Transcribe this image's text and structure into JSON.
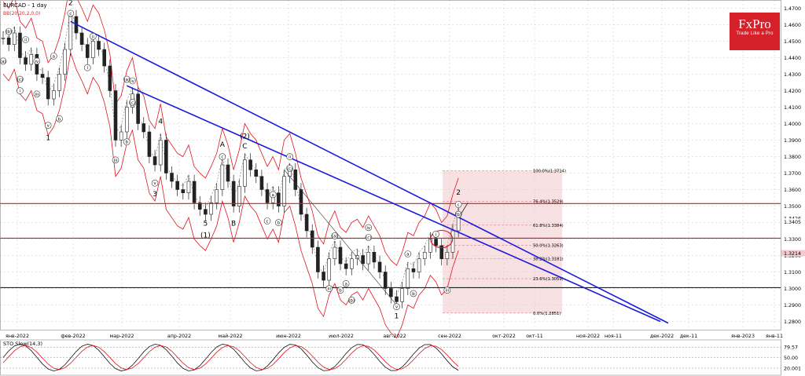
{
  "header": {
    "symbol_label": "EURCAD - 1 day",
    "bb_label": "BB(20,20,2,0,0)"
  },
  "logo": {
    "brand": "FxPro",
    "tagline": "Trade Like a Pro"
  },
  "sto": {
    "label": "STO Slow(14,3)",
    "ticks": [
      "79.57",
      "50.00",
      "20.001"
    ]
  },
  "colors": {
    "trend": "#1a1adc",
    "level": "#e0141e",
    "band": "#e0141e",
    "up": "#2a2a2a",
    "down": "#2a2a2a",
    "fibzone": "#f3c9cc"
  },
  "chart_data": {
    "type": "candlestick",
    "title": "EURCAD - 1 day",
    "x_ticks": [
      "янв-2022",
      "фев-2022",
      "мар-2022",
      "апр-2022",
      "май-2022",
      "июн-2022",
      "июл-2022",
      "авг-2022",
      "сен-2022",
      "окт-2022",
      "окт-11",
      "ноя-2022",
      "ноя-11",
      "дек-2022",
      "дек-11",
      "янв-2023",
      "янв-11"
    ],
    "y_ticks": [
      "1.4700",
      "1.4600",
      "1.4500",
      "1.4400",
      "1.4300",
      "1.4200",
      "1.4100",
      "1.4000",
      "1.3900",
      "1.3800",
      "1.3700",
      "1.3600",
      "1.3500",
      "1.3400",
      "1.3300",
      "1.3200",
      "1.3100",
      "1.3000",
      "1.2900",
      "1.2800"
    ],
    "ylim": [
      1.275,
      1.475
    ],
    "price_labels": {
      "current": "1.3214",
      "upper": "1.3426",
      "upper2": "1.3405"
    },
    "horizontal_levels": [
      1.3515,
      1.3305,
      1.3005
    ],
    "fib_levels": [
      {
        "label": "100.0%(1.3714)",
        "value": 1.3714
      },
      {
        "label": "76.4%(1.3529)",
        "value": 1.3529
      },
      {
        "label": "61.8%(1.3384)",
        "value": 1.3384
      },
      {
        "label": "50.0%(1.3263)",
        "value": 1.3263
      },
      {
        "label": "38.2%(1.3181)",
        "value": 1.3181
      },
      {
        "label": "23.6%(1.3059)",
        "value": 1.3059
      },
      {
        "label": "0.0%(1.2851)",
        "value": 1.2851
      }
    ],
    "wave_labels": [
      {
        "text": "(b)",
        "i": 1,
        "v": 1.455
      },
      {
        "text": "ii",
        "i": 4,
        "v": 1.45
      },
      {
        "text": "(a)",
        "i": 0,
        "v": 1.437
      },
      {
        "text": "iv",
        "i": 6,
        "v": 1.437
      },
      {
        "text": "(c)",
        "i": 3,
        "v": 1.426
      },
      {
        "text": "i",
        "i": 3,
        "v": 1.419
      },
      {
        "text": "iii",
        "i": 6,
        "v": 1.417
      },
      {
        "text": "a",
        "i": 9,
        "v": 1.44
      },
      {
        "text": "v",
        "i": 8,
        "v": 1.398
      },
      {
        "text": "1",
        "i": 8,
        "v": 1.39
      },
      {
        "text": "b",
        "i": 10,
        "v": 1.402
      },
      {
        "text": "2",
        "i": 12,
        "v": 1.472
      },
      {
        "text": "c",
        "i": 12,
        "v": 1.466
      },
      {
        "text": "ii",
        "i": 16,
        "v": 1.452
      },
      {
        "text": "i",
        "i": 15,
        "v": 1.433
      },
      {
        "text": "(a)",
        "i": 22,
        "v": 1.426
      },
      {
        "text": "iv",
        "i": 23,
        "v": 1.425
      },
      {
        "text": "(c)",
        "i": 23,
        "v": 1.412
      },
      {
        "text": "b",
        "i": 22,
        "v": 1.388
      },
      {
        "text": "iii",
        "i": 20,
        "v": 1.377
      },
      {
        "text": "4",
        "i": 28,
        "v": 1.4
      },
      {
        "text": "v",
        "i": 27,
        "v": 1.363
      },
      {
        "text": "3",
        "i": 27,
        "v": 1.356
      },
      {
        "text": "A",
        "i": 39,
        "v": 1.386
      },
      {
        "text": "c",
        "i": 39,
        "v": 1.379
      },
      {
        "text": "5",
        "i": 36,
        "v": 1.338
      },
      {
        "text": "(1)",
        "i": 36,
        "v": 1.331
      },
      {
        "text": "B",
        "i": 41,
        "v": 1.338
      },
      {
        "text": "(2)",
        "i": 43,
        "v": 1.391
      },
      {
        "text": "C",
        "i": 43,
        "v": 1.385
      },
      {
        "text": "ii",
        "i": 51,
        "v": 1.379
      },
      {
        "text": "(c)",
        "i": 51,
        "v": 1.372
      },
      {
        "text": "a",
        "i": 48,
        "v": 1.356
      },
      {
        "text": "b",
        "i": 49,
        "v": 1.339
      },
      {
        "text": "c",
        "i": 47,
        "v": 1.34
      },
      {
        "text": "(a)",
        "i": 59,
        "v": 1.331
      },
      {
        "text": "iv",
        "i": 65,
        "v": 1.336
      },
      {
        "text": "(c)",
        "i": 65,
        "v": 1.33
      },
      {
        "text": "iii",
        "i": 58,
        "v": 1.299
      },
      {
        "text": "a",
        "i": 61,
        "v": 1.302
      },
      {
        "text": "b",
        "i": 60,
        "v": 1.298
      },
      {
        "text": "(b)",
        "i": 62,
        "v": 1.292
      },
      {
        "text": "v",
        "i": 70,
        "v": 1.288
      },
      {
        "text": "1",
        "i": 70,
        "v": 1.282
      },
      {
        "text": "a",
        "i": 72,
        "v": 1.32
      },
      {
        "text": "b",
        "i": 73,
        "v": 1.296
      },
      {
        "text": "i",
        "i": 77,
        "v": 1.332
      },
      {
        "text": "iii",
        "i": 79,
        "v": 1.298
      },
      {
        "text": "2",
        "i": 81,
        "v": 1.357
      },
      {
        "text": "c",
        "i": 81,
        "v": 1.35
      },
      {
        "text": "(b)",
        "i": 81,
        "v": 1.344
      }
    ]
  }
}
